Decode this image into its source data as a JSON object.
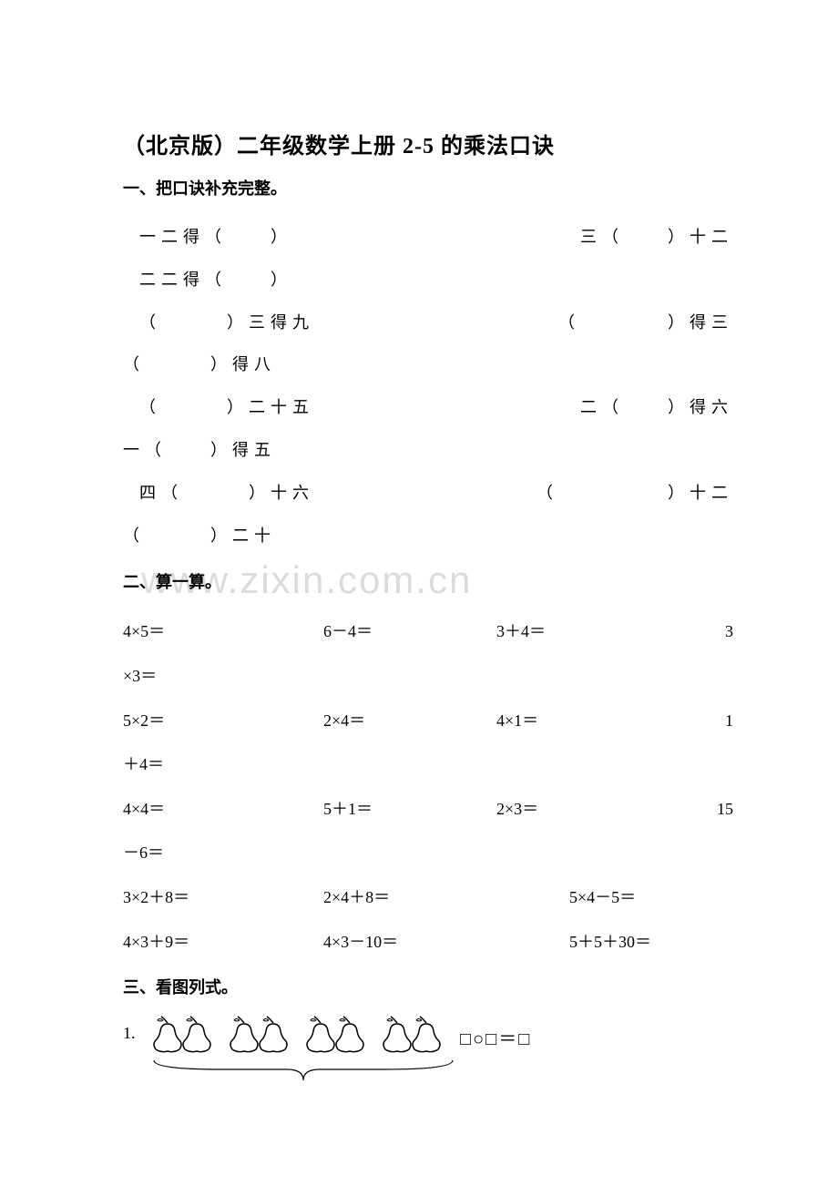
{
  "title": "（北京版）二年级数学上册 2-5 的乘法口诀",
  "section1": {
    "heading": "一、把口诀补充完整。",
    "line1_left": "一二得（　　）",
    "line1_right": "三（　　）十二",
    "line2": "二二得（　　）",
    "line3_left": "（　　　）三得九",
    "line3_right": "（　　　　）得三",
    "line3b": "（　　　）得八",
    "line4_left": "（　　　）二十五",
    "line4_right": "二（　　）得六",
    "line4b": "一（　　）得五",
    "line5_left": "四（　　　）十六",
    "line5_right": "（　　　　　）十二",
    "line5b": "（　　　）二十"
  },
  "section2": {
    "heading": "二、算一算。",
    "r1c1": "4×5＝",
    "r1c2": "6－4＝",
    "r1c3": "3＋4＝",
    "r1c4": "3",
    "r1w": "×3＝",
    "r2c1": "5×2＝",
    "r2c2": "2×4＝",
    "r2c3": "4×1＝",
    "r2c4": "1",
    "r2w": "＋4＝",
    "r3c1": "4×4＝",
    "r3c2": "5＋1＝",
    "r3c3": "2×3＝",
    "r3c4": "15",
    "r3w": "－6＝",
    "r4c1": "3×2＋8＝",
    "r4c2": "2×4＋8＝",
    "r4c3": "5×4－5＝",
    "r5c1": "4×3＋9＝",
    "r5c2": "4×3－10＝",
    "r5c3": "5＋5＋30＝"
  },
  "section3": {
    "heading": "三、看图列式。",
    "item_num": "1.",
    "equation": "□○□＝□",
    "pear_groups": 4,
    "pear_color": "#000000",
    "brace_width": 336
  },
  "watermark": "www.zixin.com.cn",
  "colors": {
    "text": "#000000",
    "background": "#ffffff",
    "watermark": "#dcdcdc"
  }
}
